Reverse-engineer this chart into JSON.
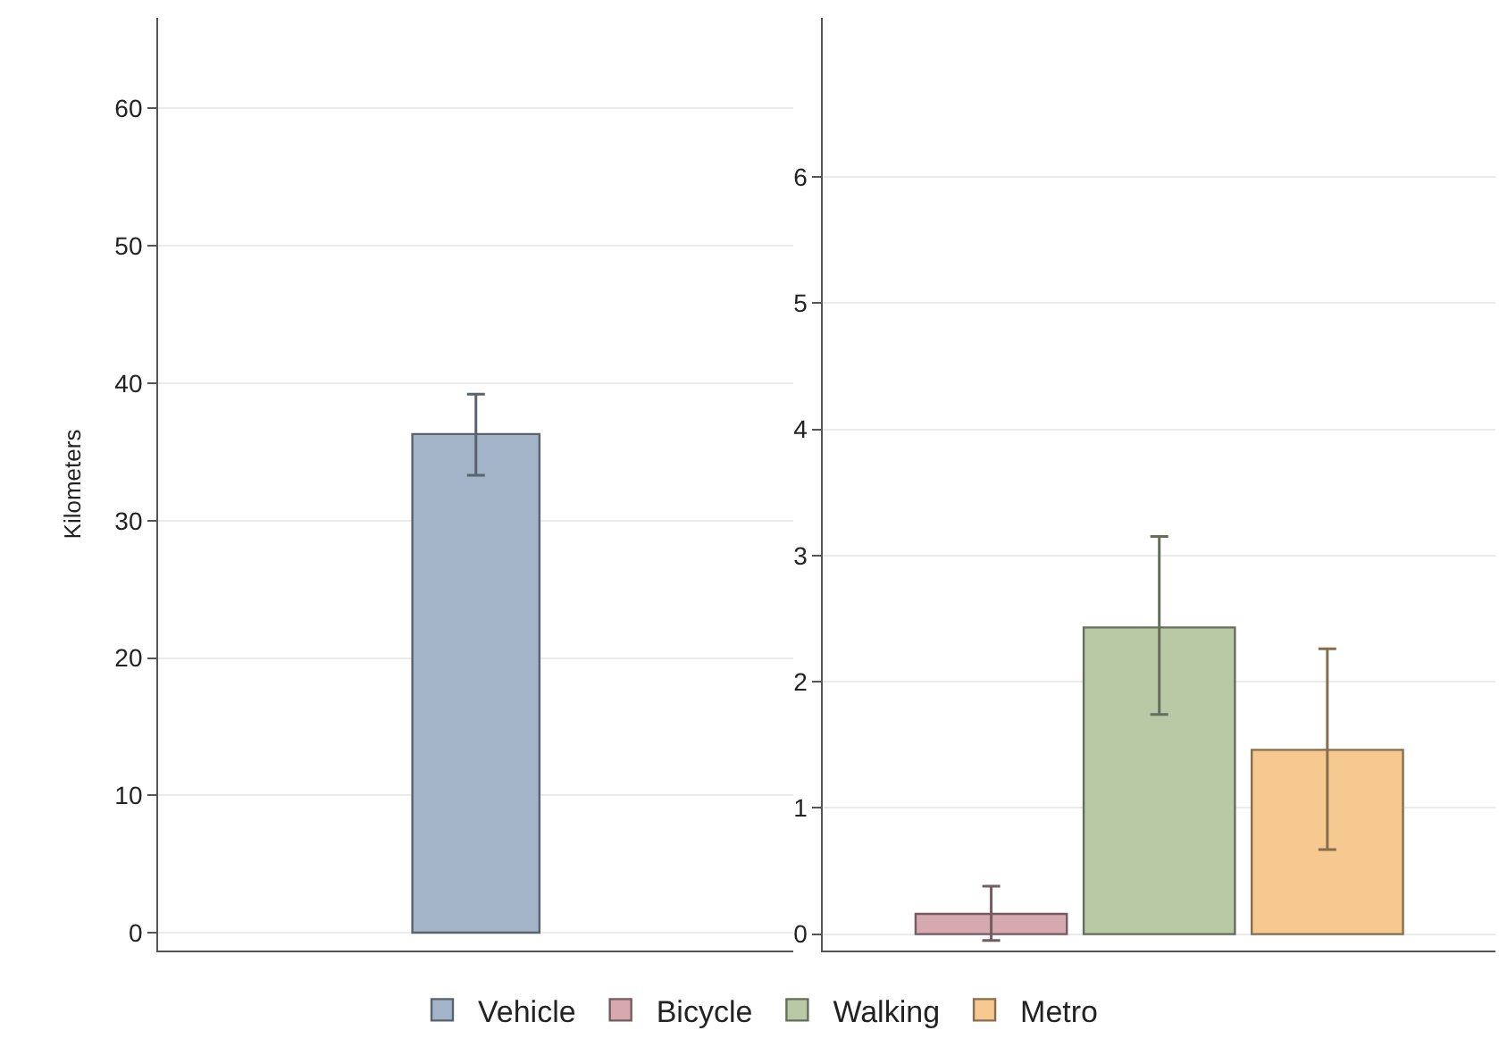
{
  "chart_data": [
    {
      "type": "bar",
      "ylabel": "Kilometers",
      "categories": [
        null
      ],
      "ylim": [
        -1.3,
        66.6
      ],
      "yticks": [
        0,
        10,
        20,
        30,
        40,
        50,
        60
      ],
      "grid": "y",
      "legend": "bottom",
      "tick_labels": "y",
      "series": [
        {
          "name": "Vehicle",
          "color": "#a3b4c8",
          "values": [
            36.3
          ],
          "errors": [
            [
              33.3,
              39.2
            ]
          ]
        }
      ]
    },
    {
      "type": "bar",
      "categories": [
        null
      ],
      "ylim": [
        -0.13,
        7.26
      ],
      "yticks": [
        0,
        1,
        2,
        3,
        4,
        5,
        6
      ],
      "grid": "y",
      "legend": "bottom",
      "tick_labels": "y",
      "series": [
        {
          "name": "Bicycle",
          "color": "#d6a8b0",
          "values": [
            0.16
          ],
          "errors": [
            [
              -0.05,
              0.38
            ]
          ]
        },
        {
          "name": "Walking",
          "color": "#b9c8a5",
          "values": [
            2.43
          ],
          "errors": [
            [
              1.74,
              3.15
            ]
          ]
        },
        {
          "name": "Metro",
          "color": "#f5c990",
          "values": [
            1.46
          ],
          "errors": [
            [
              0.67,
              2.26
            ]
          ]
        }
      ]
    }
  ]
}
